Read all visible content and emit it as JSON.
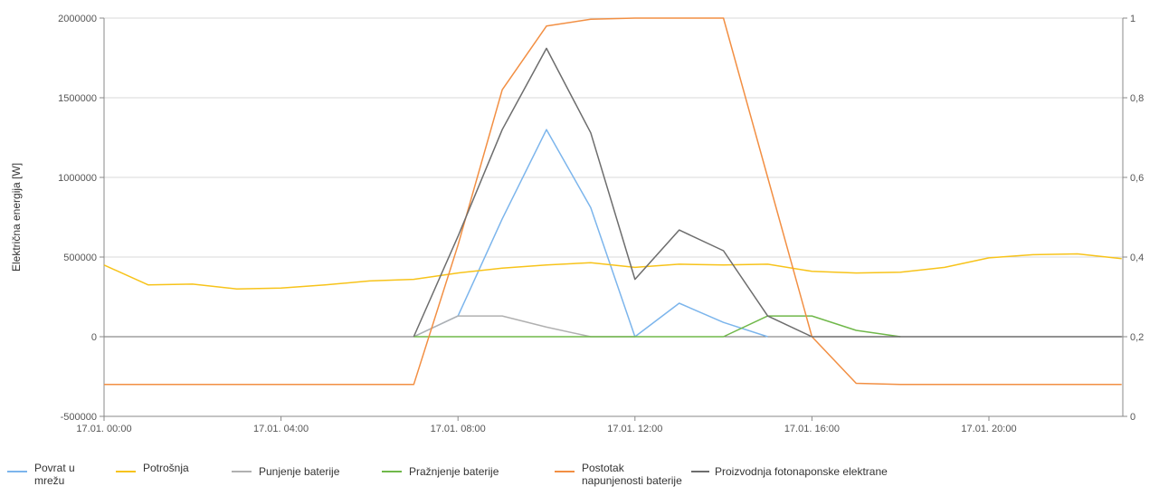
{
  "chart_data": {
    "type": "line",
    "ylabel": "Električna energija [W]",
    "ylim": [
      -500000,
      2000000
    ],
    "yticks": [
      "-500000",
      "0",
      "500000",
      "1000000",
      "1500000",
      "2000000"
    ],
    "y2lim": [
      0,
      1
    ],
    "y2ticks": [
      "0",
      "0,2",
      "0,4",
      "0,6",
      "0,8",
      "1"
    ],
    "xticks": [
      "17.01. 00:00",
      "17.01. 04:00",
      "17.01. 08:00",
      "17.01. 12:00",
      "17.01. 16:00",
      "17.01. 20:00"
    ],
    "x": [
      0,
      1,
      2,
      3,
      4,
      5,
      6,
      7,
      8,
      9,
      10,
      11,
      12,
      13,
      14,
      15,
      16,
      17,
      18,
      19,
      20,
      21,
      22,
      23
    ],
    "series": [
      {
        "name": "Povrat u mrežu",
        "color": "#7cb5ec",
        "axis": "left",
        "values": [
          null,
          null,
          null,
          null,
          null,
          null,
          null,
          0,
          130000,
          740000,
          1300000,
          810000,
          0,
          210000,
          90000,
          0,
          null,
          null,
          null,
          null,
          null,
          null,
          null,
          null
        ]
      },
      {
        "name": "Potrošnja",
        "color": "#f7c31a",
        "axis": "left",
        "values": [
          450000,
          325000,
          330000,
          300000,
          305000,
          325000,
          350000,
          360000,
          400000,
          430000,
          450000,
          465000,
          435000,
          455000,
          450000,
          455000,
          410000,
          400000,
          405000,
          435000,
          495000,
          515000,
          520000,
          490000
        ]
      },
      {
        "name": "Punjenje baterije",
        "color": "#b0b0b0",
        "axis": "left",
        "values": [
          null,
          null,
          null,
          null,
          null,
          null,
          null,
          0,
          130000,
          130000,
          60000,
          0,
          0,
          null,
          null,
          null,
          null,
          null,
          null,
          null,
          null,
          null,
          null,
          null
        ]
      },
      {
        "name": "Pražnjenje baterije",
        "color": "#70b84a",
        "axis": "left",
        "values": [
          null,
          null,
          null,
          null,
          null,
          null,
          null,
          0,
          0,
          0,
          0,
          0,
          0,
          0,
          0,
          130000,
          130000,
          40000,
          0,
          null,
          null,
          null,
          null,
          null
        ]
      },
      {
        "name": "Postotak napunjenosti baterije",
        "color": "#f28f43",
        "axis": "right",
        "values": [
          0.08,
          0.08,
          0.08,
          0.08,
          0.08,
          0.08,
          0.08,
          0.08,
          0.43,
          0.82,
          0.98,
          0.997,
          1,
          1,
          1,
          0.6,
          0.2,
          0.083,
          0.08,
          0.08,
          0.08,
          0.08,
          0.08,
          0.08
        ]
      },
      {
        "name": "Proizvodnja fotonaponske elektrane",
        "color": "#6d6d6d",
        "axis": "left",
        "values": [
          null,
          null,
          null,
          null,
          null,
          null,
          null,
          0,
          630000,
          1300000,
          1810000,
          1280000,
          360000,
          670000,
          540000,
          130000,
          0,
          0,
          0,
          0,
          0,
          0,
          0,
          0
        ]
      }
    ],
    "grid": true,
    "legend_position": "bottom"
  },
  "legend": [
    {
      "label_line1": "Povrat u",
      "label_line2": "mrežu",
      "color": "#7cb5ec"
    },
    {
      "label_line1": "Potrošnja",
      "label_line2": "",
      "color": "#f7c31a"
    },
    {
      "label_line1": "Punjenje baterije",
      "label_line2": "",
      "color": "#b0b0b0"
    },
    {
      "label_line1": "Pražnjenje baterije",
      "label_line2": "",
      "color": "#70b84a"
    },
    {
      "label_line1": "Postotak",
      "label_line2": "napunjenosti baterije",
      "color": "#f28f43"
    },
    {
      "label_line1": "Proizvodnja fotonaponske elektrane",
      "label_line2": "",
      "color": "#6d6d6d"
    }
  ]
}
